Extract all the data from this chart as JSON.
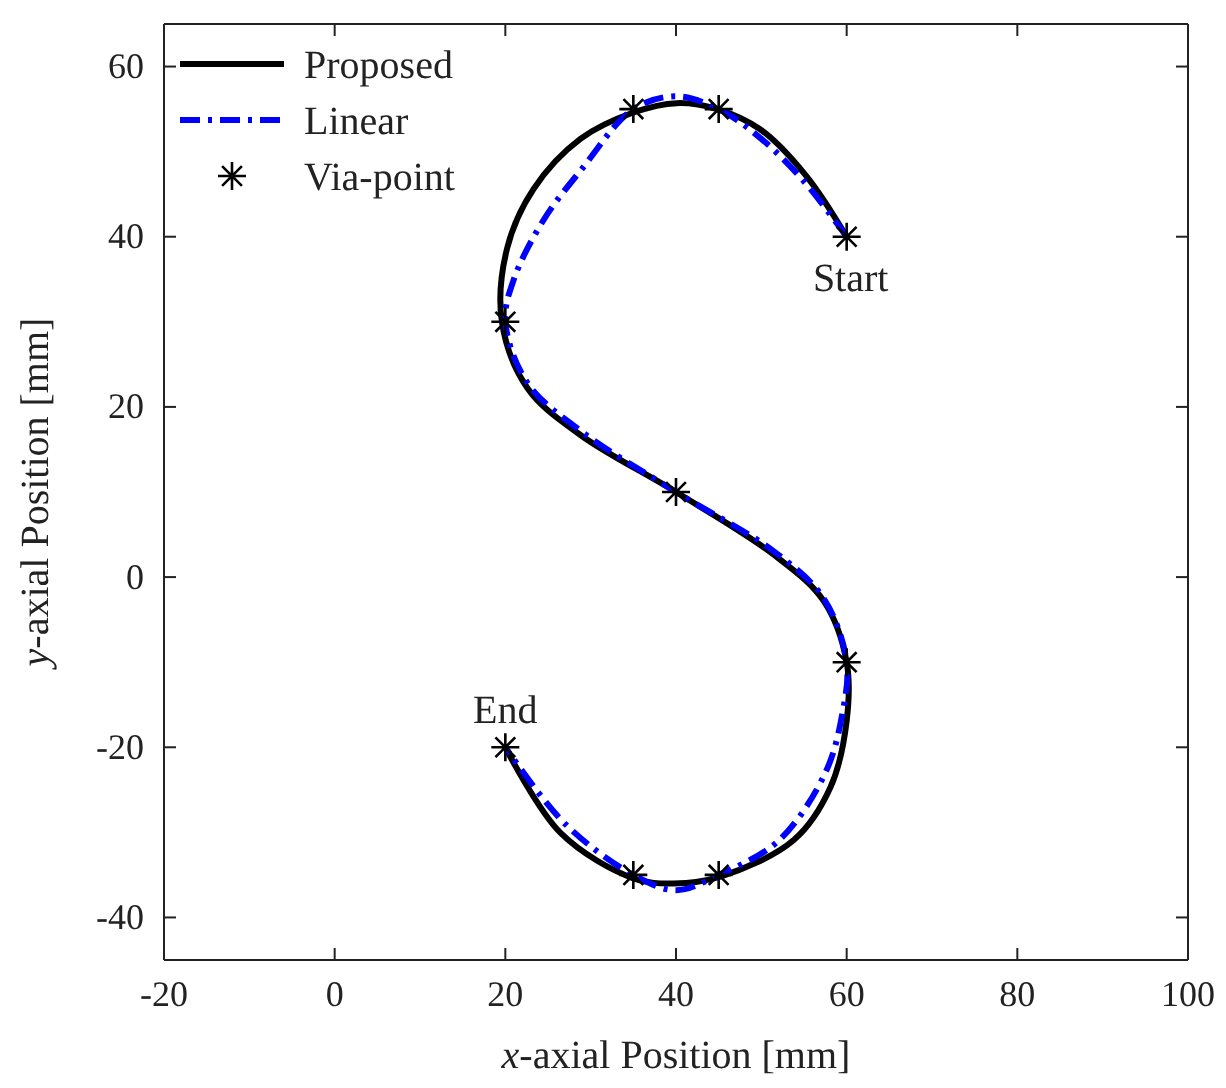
{
  "chart_data": {
    "type": "line",
    "xlabel": "x-axial Position [mm]",
    "ylabel": "y-axial Position [mm]",
    "xlim": [
      -20,
      100
    ],
    "ylim": [
      -45,
      65
    ],
    "xticks": [
      -20,
      0,
      20,
      40,
      60,
      80,
      100
    ],
    "yticks": [
      -40,
      -20,
      0,
      20,
      40,
      60
    ],
    "grid": false,
    "legend": "top left",
    "series": [
      {
        "name": "Proposed",
        "color": "#000000",
        "line_style": "solid",
        "marker": "none",
        "x": [
          60,
          55.3,
          49.9,
          44.8,
          40.1,
          35,
          28.8,
          23.3,
          20.2,
          19.6,
          22.6,
          28.8,
          40,
          51.5,
          57.3,
          60,
          60,
          58.1,
          53.8,
          45.2,
          39.7,
          35,
          26.5,
          20
        ],
        "values": [
          40,
          47.1,
          52.6,
          55,
          55.7,
          54.6,
          51.5,
          45.6,
          38.6,
          30,
          22.2,
          16.7,
          10,
          2.6,
          -2.8,
          -10,
          -16.9,
          -24.7,
          -30.9,
          -35.2,
          -36,
          -35.4,
          -30.1,
          -20
        ]
      },
      {
        "name": "Linear",
        "color": "#0000ff",
        "line_style": "dashed",
        "marker": "none",
        "x": [
          60,
          55,
          50,
          45,
          40,
          35,
          29,
          24.5,
          21,
          20,
          22.6,
          28.8,
          40,
          51.5,
          57.3,
          60,
          59.5,
          57.5,
          52,
          45,
          40,
          35,
          27,
          20
        ],
        "values": [
          40,
          46.5,
          51.5,
          55,
          56.5,
          55,
          48,
          42,
          35,
          30,
          22.8,
          17.2,
          10,
          3,
          -2.5,
          -10,
          -16,
          -23,
          -31,
          -35,
          -36.8,
          -35,
          -29,
          -20
        ]
      },
      {
        "name": "Via-point",
        "type": "scatter",
        "color": "#000000",
        "marker": "cross",
        "x": [
          60,
          45,
          35,
          20,
          40,
          60,
          45,
          35,
          20
        ],
        "values": [
          40,
          55,
          55,
          30,
          10,
          -10,
          -35,
          -35,
          -20
        ]
      }
    ],
    "annotations": [
      {
        "text": "Start",
        "x": 60,
        "y": 40
      },
      {
        "text": "End",
        "x": 20,
        "y": -20
      }
    ]
  }
}
